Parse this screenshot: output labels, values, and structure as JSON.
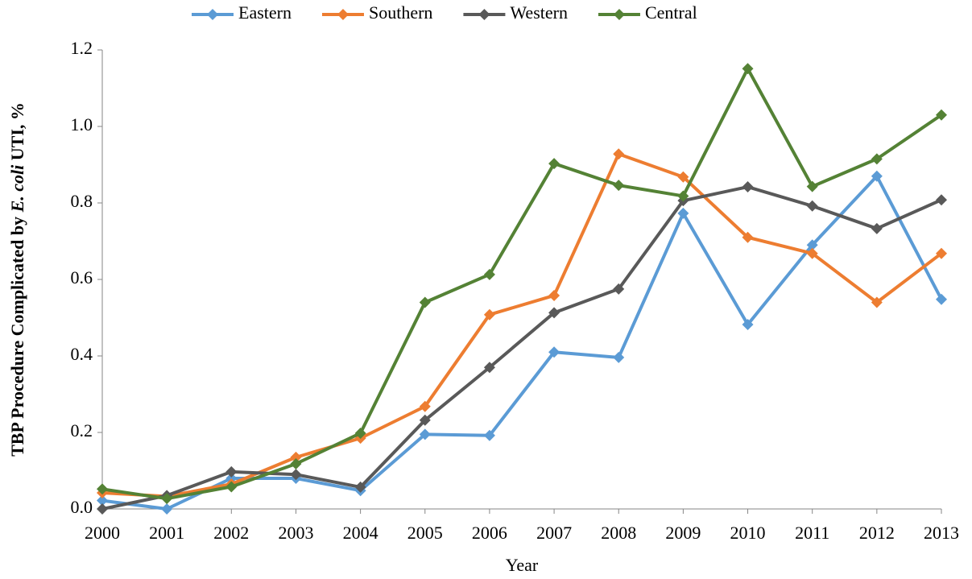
{
  "chart_data": {
    "type": "line",
    "x_label": "Year",
    "y_label_parts": [
      "TBP Procedure Complicated by ",
      "E. coli",
      " UTI, %"
    ],
    "categories": [
      "2000",
      "2001",
      "2002",
      "2003",
      "2004",
      "2005",
      "2006",
      "2007",
      "2008",
      "2009",
      "2010",
      "2011",
      "2012",
      "2013"
    ],
    "series": [
      {
        "name": "Eastern",
        "color": "#5b9bd5",
        "values": [
          0.022,
          0.0,
          0.08,
          0.08,
          0.048,
          0.195,
          0.192,
          0.41,
          0.396,
          0.773,
          0.482,
          0.69,
          0.87,
          0.548
        ]
      },
      {
        "name": "Southern",
        "color": "#ed7d31",
        "values": [
          0.042,
          0.033,
          0.065,
          0.135,
          0.185,
          0.268,
          0.508,
          0.558,
          0.928,
          0.868,
          0.71,
          0.668,
          0.54,
          0.668
        ]
      },
      {
        "name": "Western",
        "color": "#595959",
        "values": [
          0.0,
          0.035,
          0.097,
          0.09,
          0.057,
          0.232,
          0.37,
          0.513,
          0.575,
          0.806,
          0.842,
          0.792,
          0.733,
          0.808
        ]
      },
      {
        "name": "Central",
        "color": "#548235",
        "values": [
          0.052,
          0.027,
          0.058,
          0.118,
          0.198,
          0.54,
          0.613,
          0.903,
          0.846,
          0.818,
          1.151,
          0.843,
          0.915,
          1.03
        ]
      }
    ],
    "ylim": [
      0,
      1.2
    ],
    "yticks": [
      {
        "value": 0,
        "label": "0.0"
      },
      0.2,
      0.4,
      0.6,
      0.8,
      {
        "value": 1,
        "label": "1.0"
      },
      1.2
    ],
    "grid": false,
    "legend": "top"
  }
}
